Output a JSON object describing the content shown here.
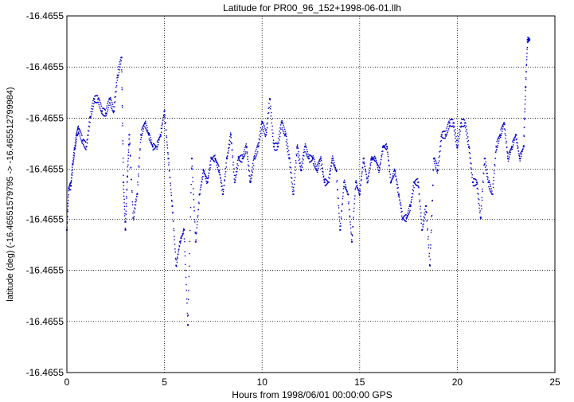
{
  "chart_data": {
    "type": "scatter",
    "title": "Latitude for PR00_96_152+1998-06-01.llh",
    "xlabel": "Hours from 1998/06/01 00:00:00 GPS",
    "ylabel": "latitude (deg) (-16.46551579795 -> -16.465512799984)",
    "xlim": [
      0,
      25
    ],
    "ylim": [
      -16.4655158,
      -16.4655128
    ],
    "grid": true,
    "legend": "none",
    "x_ticks": [
      0,
      5,
      10,
      15,
      20,
      25
    ],
    "y_tick_values": [
      -16.4655158,
      -16.46551537,
      -16.46551494,
      -16.46551451,
      -16.46551409,
      -16.46551366,
      -16.46551323,
      -16.4655128
    ],
    "y_tick_labels": [
      "-16.4655",
      "-16.4655",
      "-16.4655",
      "-16.4655",
      "-16.4655",
      "-16.4655",
      "-16.4655",
      "-16.4655"
    ],
    "series": [
      {
        "color": "#0000cc",
        "x": [
          0,
          0.1,
          0.2,
          0.3,
          0.4,
          0.5,
          0.6,
          0.8,
          1.0,
          1.2,
          1.4,
          1.6,
          1.8,
          2.0,
          2.2,
          2.4,
          2.6,
          2.8,
          2.9,
          3.0,
          3.1,
          3.2,
          3.4,
          3.6,
          3.8,
          4.0,
          4.2,
          4.4,
          4.6,
          4.8,
          5.0,
          5.2,
          5.4,
          5.6,
          5.8,
          6.0,
          6.2,
          6.4,
          6.6,
          6.8,
          7.0,
          7.2,
          7.4,
          7.6,
          7.8,
          8.0,
          8.2,
          8.4,
          8.6,
          8.8,
          9.0,
          9.2,
          9.4,
          9.6,
          9.8,
          10.0,
          10.2,
          10.4,
          10.6,
          10.8,
          11.0,
          11.2,
          11.4,
          11.6,
          11.8,
          12.0,
          12.2,
          12.4,
          12.6,
          12.8,
          13.0,
          13.2,
          13.4,
          13.6,
          13.8,
          14.0,
          14.2,
          14.4,
          14.6,
          14.8,
          15.0,
          15.2,
          15.4,
          15.6,
          15.8,
          16.0,
          16.2,
          16.4,
          16.6,
          16.8,
          17.0,
          17.2,
          17.4,
          17.6,
          17.8,
          18.0,
          18.2,
          18.4,
          18.6,
          18.8,
          19.0,
          19.2,
          19.4,
          19.6,
          19.8,
          20.0,
          20.2,
          20.4,
          20.6,
          20.8,
          21.0,
          21.2,
          21.4,
          21.6,
          21.8,
          22.0,
          22.2,
          22.4,
          22.6,
          22.8,
          23.0,
          23.2,
          23.4,
          23.5,
          23.6,
          23.7
        ],
        "y": [
          -16.4655146,
          -16.46551425,
          -16.46551423,
          -16.46551405,
          -16.46551392,
          -16.4655138,
          -16.46551375,
          -16.46551385,
          -16.4655139,
          -16.46551365,
          -16.4655135,
          -16.4655135,
          -16.4655136,
          -16.46551362,
          -16.4655135,
          -16.4655136,
          -16.4655133,
          -16.46551315,
          -16.4655142,
          -16.4655146,
          -16.46551415,
          -16.4655138,
          -16.4655145,
          -16.4655143,
          -16.4655138,
          -16.4655137,
          -16.4655138,
          -16.4655139,
          -16.4655139,
          -16.4655138,
          -16.4655136,
          -16.465514,
          -16.4655144,
          -16.4655149,
          -16.4655147,
          -16.4655146,
          -16.4655154,
          -16.465514,
          -16.4655147,
          -16.4655143,
          -16.4655141,
          -16.4655142,
          -16.465514,
          -16.465514,
          -16.4655141,
          -16.4655143,
          -16.465514,
          -16.4655138,
          -16.4655142,
          -16.465514,
          -16.465514,
          -16.4655139,
          -16.4655142,
          -16.465514,
          -16.4655139,
          -16.4655137,
          -16.4655138,
          -16.4655135,
          -16.4655139,
          -16.4655139,
          -16.4655137,
          -16.4655138,
          -16.465514,
          -16.4655143,
          -16.4655139,
          -16.4655141,
          -16.4655139,
          -16.465514,
          -16.465514,
          -16.4655141,
          -16.465514,
          -16.4655142,
          -16.4655142,
          -16.465514,
          -16.4655141,
          -16.4655146,
          -16.4655142,
          -16.4655143,
          -16.4655147,
          -16.4655142,
          -16.4655143,
          -16.465514,
          -16.4655142,
          -16.465514,
          -16.465514,
          -16.4655141,
          -16.4655139,
          -16.4655139,
          -16.4655142,
          -16.4655141,
          -16.4655143,
          -16.4655145,
          -16.4655145,
          -16.4655144,
          -16.4655142,
          -16.4655142,
          -16.4655146,
          -16.4655144,
          -16.4655149,
          -16.465514,
          -16.4655141,
          -16.4655138,
          -16.4655138,
          -16.4655137,
          -16.4655137,
          -16.4655139,
          -16.4655137,
          -16.4655137,
          -16.4655139,
          -16.4655142,
          -16.4655142,
          -16.4655145,
          -16.465514,
          -16.4655142,
          -16.4655143,
          -16.4655139,
          -16.4655138,
          -16.4655137,
          -16.465514,
          -16.4655139,
          -16.4655138,
          -16.465514,
          -16.4655139,
          -16.4655134,
          -16.465513,
          -16.465513
        ]
      }
    ]
  }
}
